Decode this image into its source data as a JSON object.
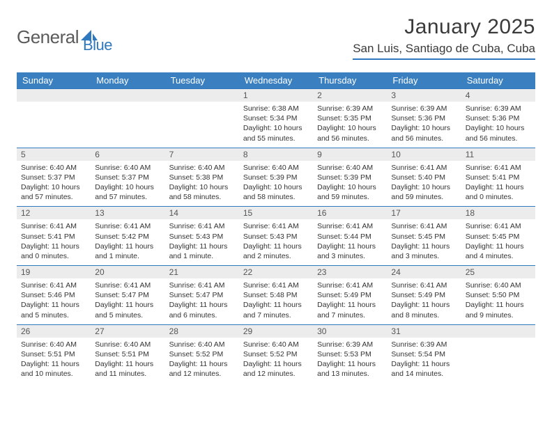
{
  "brand": {
    "word1": "General",
    "word2": "Blue"
  },
  "title": "January 2025",
  "location": "San Luis, Santiago de Cuba, Cuba",
  "colors": {
    "accent": "#3a80c1",
    "rule": "#2f78bd",
    "daynum_bg": "#ececec"
  },
  "dayNames": [
    "Sunday",
    "Monday",
    "Tuesday",
    "Wednesday",
    "Thursday",
    "Friday",
    "Saturday"
  ],
  "weeks": [
    [
      null,
      null,
      null,
      {
        "n": "1",
        "sr": "6:38 AM",
        "ss": "5:34 PM",
        "dl": "10 hours and 55 minutes."
      },
      {
        "n": "2",
        "sr": "6:39 AM",
        "ss": "5:35 PM",
        "dl": "10 hours and 56 minutes."
      },
      {
        "n": "3",
        "sr": "6:39 AM",
        "ss": "5:36 PM",
        "dl": "10 hours and 56 minutes."
      },
      {
        "n": "4",
        "sr": "6:39 AM",
        "ss": "5:36 PM",
        "dl": "10 hours and 56 minutes."
      }
    ],
    [
      {
        "n": "5",
        "sr": "6:40 AM",
        "ss": "5:37 PM",
        "dl": "10 hours and 57 minutes."
      },
      {
        "n": "6",
        "sr": "6:40 AM",
        "ss": "5:37 PM",
        "dl": "10 hours and 57 minutes."
      },
      {
        "n": "7",
        "sr": "6:40 AM",
        "ss": "5:38 PM",
        "dl": "10 hours and 58 minutes."
      },
      {
        "n": "8",
        "sr": "6:40 AM",
        "ss": "5:39 PM",
        "dl": "10 hours and 58 minutes."
      },
      {
        "n": "9",
        "sr": "6:40 AM",
        "ss": "5:39 PM",
        "dl": "10 hours and 59 minutes."
      },
      {
        "n": "10",
        "sr": "6:41 AM",
        "ss": "5:40 PM",
        "dl": "10 hours and 59 minutes."
      },
      {
        "n": "11",
        "sr": "6:41 AM",
        "ss": "5:41 PM",
        "dl": "11 hours and 0 minutes."
      }
    ],
    [
      {
        "n": "12",
        "sr": "6:41 AM",
        "ss": "5:41 PM",
        "dl": "11 hours and 0 minutes."
      },
      {
        "n": "13",
        "sr": "6:41 AM",
        "ss": "5:42 PM",
        "dl": "11 hours and 1 minute."
      },
      {
        "n": "14",
        "sr": "6:41 AM",
        "ss": "5:43 PM",
        "dl": "11 hours and 1 minute."
      },
      {
        "n": "15",
        "sr": "6:41 AM",
        "ss": "5:43 PM",
        "dl": "11 hours and 2 minutes."
      },
      {
        "n": "16",
        "sr": "6:41 AM",
        "ss": "5:44 PM",
        "dl": "11 hours and 3 minutes."
      },
      {
        "n": "17",
        "sr": "6:41 AM",
        "ss": "5:45 PM",
        "dl": "11 hours and 3 minutes."
      },
      {
        "n": "18",
        "sr": "6:41 AM",
        "ss": "5:45 PM",
        "dl": "11 hours and 4 minutes."
      }
    ],
    [
      {
        "n": "19",
        "sr": "6:41 AM",
        "ss": "5:46 PM",
        "dl": "11 hours and 5 minutes."
      },
      {
        "n": "20",
        "sr": "6:41 AM",
        "ss": "5:47 PM",
        "dl": "11 hours and 5 minutes."
      },
      {
        "n": "21",
        "sr": "6:41 AM",
        "ss": "5:47 PM",
        "dl": "11 hours and 6 minutes."
      },
      {
        "n": "22",
        "sr": "6:41 AM",
        "ss": "5:48 PM",
        "dl": "11 hours and 7 minutes."
      },
      {
        "n": "23",
        "sr": "6:41 AM",
        "ss": "5:49 PM",
        "dl": "11 hours and 7 minutes."
      },
      {
        "n": "24",
        "sr": "6:41 AM",
        "ss": "5:49 PM",
        "dl": "11 hours and 8 minutes."
      },
      {
        "n": "25",
        "sr": "6:40 AM",
        "ss": "5:50 PM",
        "dl": "11 hours and 9 minutes."
      }
    ],
    [
      {
        "n": "26",
        "sr": "6:40 AM",
        "ss": "5:51 PM",
        "dl": "11 hours and 10 minutes."
      },
      {
        "n": "27",
        "sr": "6:40 AM",
        "ss": "5:51 PM",
        "dl": "11 hours and 11 minutes."
      },
      {
        "n": "28",
        "sr": "6:40 AM",
        "ss": "5:52 PM",
        "dl": "11 hours and 12 minutes."
      },
      {
        "n": "29",
        "sr": "6:40 AM",
        "ss": "5:52 PM",
        "dl": "11 hours and 12 minutes."
      },
      {
        "n": "30",
        "sr": "6:39 AM",
        "ss": "5:53 PM",
        "dl": "11 hours and 13 minutes."
      },
      {
        "n": "31",
        "sr": "6:39 AM",
        "ss": "5:54 PM",
        "dl": "11 hours and 14 minutes."
      },
      null
    ]
  ],
  "labels": {
    "sunrise": "Sunrise:",
    "sunset": "Sunset:",
    "daylight": "Daylight:"
  }
}
